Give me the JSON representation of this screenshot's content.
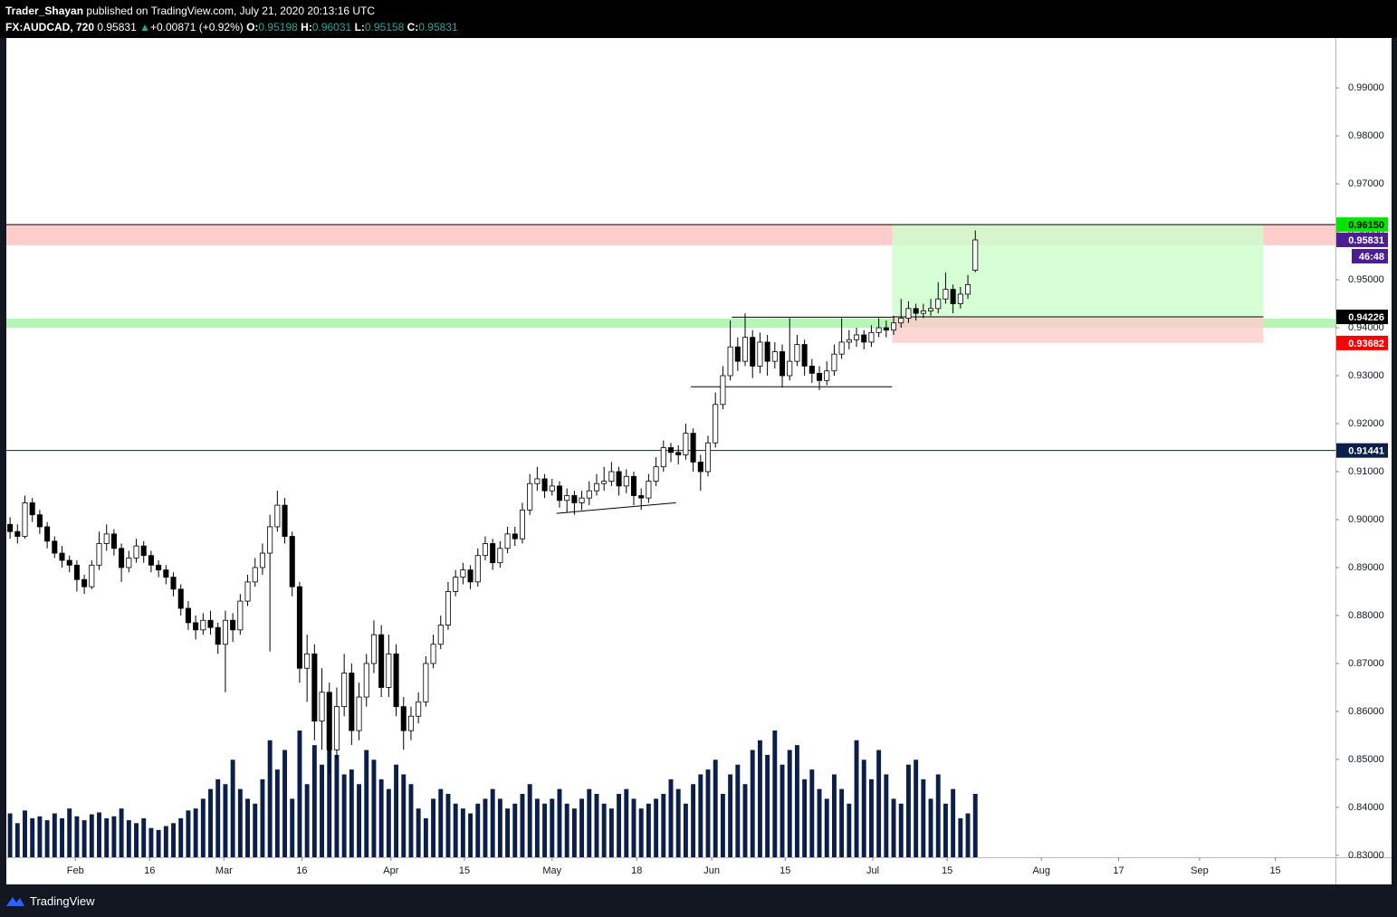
{
  "header": {
    "author": "Trader_Shayan",
    "published": "published on TradingView.com, July 21, 2020 20:13:16 UTC",
    "symbol": "FX:AUDCAD, 720",
    "last": "0.95831",
    "arrow": "▲",
    "change": "+0.00871 (+0.92%)",
    "o_label": "O:",
    "o": "0.95198",
    "h_label": "H:",
    "h": "0.96031",
    "l_label": "L:",
    "l": "0.95158",
    "c_label": "C:",
    "c": "0.95831"
  },
  "footer": {
    "brand": "TradingView"
  },
  "chart_data": {
    "type": "candlestick",
    "xlim": [
      0,
      179
    ],
    "ylim": [
      0.8296,
      1.0004
    ],
    "xticks": [
      {
        "value": 9.3,
        "label": "Feb"
      },
      {
        "value": 19.3,
        "label": "16"
      },
      {
        "value": 29.3,
        "label": "Mar"
      },
      {
        "value": 39.8,
        "label": "16"
      },
      {
        "value": 51.8,
        "label": "Apr"
      },
      {
        "value": 61.7,
        "label": "15"
      },
      {
        "value": 73.5,
        "label": "May"
      },
      {
        "value": 84.9,
        "label": "18"
      },
      {
        "value": 95,
        "label": "Jun"
      },
      {
        "value": 104.9,
        "label": "15"
      },
      {
        "value": 116.7,
        "label": "Jul"
      },
      {
        "value": 126.7,
        "label": "15"
      },
      {
        "value": 139.4,
        "label": "Aug"
      },
      {
        "value": 149.8,
        "label": "17"
      },
      {
        "value": 160.7,
        "label": "Sep"
      },
      {
        "value": 170.9,
        "label": "15"
      }
    ],
    "yticks": [
      {
        "value": 0.83,
        "label": "0.83000"
      },
      {
        "value": 0.84,
        "label": "0.84000"
      },
      {
        "value": 0.85,
        "label": "0.85000"
      },
      {
        "value": 0.86,
        "label": "0.86000"
      },
      {
        "value": 0.87,
        "label": "0.87000"
      },
      {
        "value": 0.88,
        "label": "0.88000"
      },
      {
        "value": 0.89,
        "label": "0.89000"
      },
      {
        "value": 0.9,
        "label": "0.90000"
      },
      {
        "value": 0.91,
        "label": "0.91000"
      },
      {
        "value": 0.92,
        "label": "0.92000"
      },
      {
        "value": 0.93,
        "label": "0.93000"
      },
      {
        "value": 0.94,
        "label": "0.94000"
      },
      {
        "value": 0.95,
        "label": "0.95000"
      },
      {
        "value": 0.96,
        "label": "0.96000"
      },
      {
        "value": 0.97,
        "label": "0.97000"
      },
      {
        "value": 0.98,
        "label": "0.98000"
      },
      {
        "value": 0.99,
        "label": "0.99000"
      }
    ],
    "up_color": "#ffffff",
    "down_color": "#000000",
    "volume_color": "#0c1f4a",
    "candles": [
      [
        0.899,
        0.9005,
        0.896,
        0.8975
      ],
      [
        0.8975,
        0.899,
        0.895,
        0.8965
      ],
      [
        0.8965,
        0.905,
        0.896,
        0.9035
      ],
      [
        0.9035,
        0.9045,
        0.8995,
        0.901
      ],
      [
        0.901,
        0.902,
        0.897,
        0.8985
      ],
      [
        0.8985,
        0.8995,
        0.894,
        0.8955
      ],
      [
        0.8955,
        0.8965,
        0.892,
        0.893
      ],
      [
        0.893,
        0.8945,
        0.89,
        0.8915
      ],
      [
        0.8915,
        0.8925,
        0.889,
        0.8905
      ],
      [
        0.8905,
        0.8915,
        0.885,
        0.8875
      ],
      [
        0.8875,
        0.8885,
        0.8845,
        0.886
      ],
      [
        0.886,
        0.8915,
        0.8855,
        0.8905
      ],
      [
        0.8905,
        0.8975,
        0.8895,
        0.895
      ],
      [
        0.895,
        0.899,
        0.8935,
        0.897
      ],
      [
        0.897,
        0.898,
        0.8925,
        0.894
      ],
      [
        0.894,
        0.895,
        0.887,
        0.89
      ],
      [
        0.89,
        0.8935,
        0.889,
        0.892
      ],
      [
        0.892,
        0.896,
        0.891,
        0.8945
      ],
      [
        0.8945,
        0.8955,
        0.891,
        0.8925
      ],
      [
        0.8925,
        0.8935,
        0.889,
        0.8905
      ],
      [
        0.8905,
        0.8915,
        0.888,
        0.8895
      ],
      [
        0.8895,
        0.8905,
        0.8865,
        0.888
      ],
      [
        0.888,
        0.889,
        0.884,
        0.8855
      ],
      [
        0.8855,
        0.8865,
        0.88,
        0.8815
      ],
      [
        0.8815,
        0.883,
        0.877,
        0.8785
      ],
      [
        0.8785,
        0.88,
        0.875,
        0.877
      ],
      [
        0.877,
        0.8805,
        0.876,
        0.879
      ],
      [
        0.879,
        0.881,
        0.876,
        0.8775
      ],
      [
        0.8775,
        0.8785,
        0.872,
        0.874
      ],
      [
        0.874,
        0.881,
        0.864,
        0.879
      ],
      [
        0.879,
        0.8805,
        0.8745,
        0.877
      ],
      [
        0.877,
        0.8845,
        0.876,
        0.883
      ],
      [
        0.883,
        0.8885,
        0.882,
        0.887
      ],
      [
        0.887,
        0.892,
        0.886,
        0.89
      ],
      [
        0.89,
        0.895,
        0.8885,
        0.893
      ],
      [
        0.893,
        0.901,
        0.8725,
        0.8985
      ],
      [
        0.8985,
        0.906,
        0.8975,
        0.903
      ],
      [
        0.903,
        0.9045,
        0.895,
        0.8965
      ],
      [
        0.8965,
        0.8975,
        0.884,
        0.886
      ],
      [
        0.886,
        0.887,
        0.866,
        0.869
      ],
      [
        0.869,
        0.876,
        0.862,
        0.872
      ],
      [
        0.872,
        0.874,
        0.854,
        0.858
      ],
      [
        0.858,
        0.869,
        0.852,
        0.864
      ],
      [
        0.864,
        0.866,
        0.847,
        0.852
      ],
      [
        0.852,
        0.865,
        0.85,
        0.861
      ],
      [
        0.861,
        0.872,
        0.859,
        0.868
      ],
      [
        0.868,
        0.87,
        0.853,
        0.856
      ],
      [
        0.856,
        0.866,
        0.854,
        0.863
      ],
      [
        0.863,
        0.872,
        0.861,
        0.87
      ],
      [
        0.87,
        0.879,
        0.868,
        0.876
      ],
      [
        0.876,
        0.878,
        0.863,
        0.865
      ],
      [
        0.865,
        0.876,
        0.863,
        0.872
      ],
      [
        0.872,
        0.874,
        0.859,
        0.861
      ],
      [
        0.861,
        0.863,
        0.852,
        0.856
      ],
      [
        0.856,
        0.861,
        0.854,
        0.859
      ],
      [
        0.859,
        0.864,
        0.8575,
        0.862
      ],
      [
        0.862,
        0.8715,
        0.861,
        0.87
      ],
      [
        0.87,
        0.876,
        0.869,
        0.874
      ],
      [
        0.874,
        0.88,
        0.873,
        0.878
      ],
      [
        0.878,
        0.887,
        0.877,
        0.885
      ],
      [
        0.885,
        0.8895,
        0.884,
        0.888
      ],
      [
        0.888,
        0.891,
        0.8865,
        0.8895
      ],
      [
        0.8895,
        0.8905,
        0.8855,
        0.887
      ],
      [
        0.887,
        0.894,
        0.886,
        0.8925
      ],
      [
        0.8925,
        0.8965,
        0.8915,
        0.895
      ],
      [
        0.895,
        0.896,
        0.8895,
        0.891
      ],
      [
        0.891,
        0.8955,
        0.89,
        0.894
      ],
      [
        0.894,
        0.8985,
        0.893,
        0.897
      ],
      [
        0.897,
        0.8985,
        0.8945,
        0.896
      ],
      [
        0.896,
        0.9035,
        0.895,
        0.902
      ],
      [
        0.902,
        0.9095,
        0.901,
        0.9075
      ],
      [
        0.9075,
        0.911,
        0.906,
        0.9085
      ],
      [
        0.9085,
        0.9095,
        0.9045,
        0.906
      ],
      [
        0.906,
        0.9085,
        0.905,
        0.907
      ],
      [
        0.907,
        0.908,
        0.9025,
        0.904
      ],
      [
        0.904,
        0.9065,
        0.9015,
        0.905
      ],
      [
        0.905,
        0.906,
        0.901,
        0.9035
      ],
      [
        0.9035,
        0.906,
        0.902,
        0.9045
      ],
      [
        0.9045,
        0.908,
        0.903,
        0.906
      ],
      [
        0.906,
        0.9095,
        0.905,
        0.9075
      ],
      [
        0.9075,
        0.911,
        0.906,
        0.908
      ],
      [
        0.908,
        0.912,
        0.907,
        0.91
      ],
      [
        0.91,
        0.911,
        0.905,
        0.907
      ],
      [
        0.907,
        0.9105,
        0.9055,
        0.909
      ],
      [
        0.909,
        0.91,
        0.903,
        0.905
      ],
      [
        0.905,
        0.9065,
        0.902,
        0.9045
      ],
      [
        0.9045,
        0.9095,
        0.9035,
        0.908
      ],
      [
        0.908,
        0.913,
        0.907,
        0.911
      ],
      [
        0.911,
        0.9165,
        0.91,
        0.915
      ],
      [
        0.915,
        0.916,
        0.912,
        0.914
      ],
      [
        0.914,
        0.9155,
        0.9115,
        0.9135
      ],
      [
        0.9135,
        0.92,
        0.9125,
        0.918
      ],
      [
        0.918,
        0.919,
        0.91,
        0.912
      ],
      [
        0.912,
        0.9135,
        0.906,
        0.91
      ],
      [
        0.91,
        0.9175,
        0.909,
        0.916
      ],
      [
        0.916,
        0.9265,
        0.915,
        0.924
      ],
      [
        0.924,
        0.932,
        0.923,
        0.93
      ],
      [
        0.93,
        0.9415,
        0.929,
        0.936
      ],
      [
        0.936,
        0.938,
        0.931,
        0.933
      ],
      [
        0.933,
        0.943,
        0.932,
        0.938
      ],
      [
        0.938,
        0.9395,
        0.9295,
        0.932
      ],
      [
        0.932,
        0.939,
        0.9305,
        0.937
      ],
      [
        0.937,
        0.9385,
        0.93,
        0.933
      ],
      [
        0.933,
        0.937,
        0.9315,
        0.935
      ],
      [
        0.935,
        0.9365,
        0.9275,
        0.93
      ],
      [
        0.93,
        0.942,
        0.929,
        0.933
      ],
      [
        0.933,
        0.9385,
        0.932,
        0.9365
      ],
      [
        0.9365,
        0.9375,
        0.93,
        0.932
      ],
      [
        0.932,
        0.9335,
        0.9285,
        0.9305
      ],
      [
        0.9305,
        0.932,
        0.927,
        0.929
      ],
      [
        0.929,
        0.933,
        0.928,
        0.931
      ],
      [
        0.931,
        0.9365,
        0.93,
        0.9345
      ],
      [
        0.9345,
        0.942,
        0.9335,
        0.937
      ],
      [
        0.937,
        0.9395,
        0.9355,
        0.9375
      ],
      [
        0.9375,
        0.94,
        0.936,
        0.9385
      ],
      [
        0.9385,
        0.9395,
        0.9355,
        0.937
      ],
      [
        0.937,
        0.9405,
        0.936,
        0.939
      ],
      [
        0.939,
        0.942,
        0.938,
        0.94
      ],
      [
        0.94,
        0.9415,
        0.938,
        0.9395
      ],
      [
        0.9395,
        0.9425,
        0.9385,
        0.941
      ],
      [
        0.941,
        0.946,
        0.94,
        0.942
      ],
      [
        0.942,
        0.9455,
        0.941,
        0.944
      ],
      [
        0.944,
        0.945,
        0.9415,
        0.943
      ],
      [
        0.943,
        0.945,
        0.942,
        0.9435
      ],
      [
        0.9435,
        0.946,
        0.9425,
        0.944
      ],
      [
        0.944,
        0.9495,
        0.943,
        0.946
      ],
      [
        0.946,
        0.9515,
        0.945,
        0.948
      ],
      [
        0.948,
        0.949,
        0.943,
        0.945
      ],
      [
        0.945,
        0.9485,
        0.944,
        0.947
      ],
      [
        0.947,
        0.951,
        0.946,
        0.949
      ],
      [
        0.95198,
        0.96031,
        0.95158,
        0.95831
      ]
    ],
    "volumes": [
      45,
      35,
      48,
      40,
      42,
      38,
      45,
      40,
      50,
      42,
      38,
      44,
      46,
      40,
      42,
      50,
      38,
      35,
      40,
      30,
      28,
      32,
      35,
      40,
      48,
      50,
      60,
      70,
      80,
      75,
      100,
      70,
      60,
      55,
      80,
      120,
      90,
      110,
      60,
      130,
      75,
      115,
      95,
      120,
      105,
      85,
      90,
      75,
      110,
      100,
      80,
      70,
      95,
      85,
      75,
      50,
      40,
      60,
      70,
      65,
      55,
      50,
      45,
      55,
      60,
      70,
      60,
      50,
      55,
      65,
      75,
      60,
      55,
      60,
      70,
      55,
      50,
      60,
      70,
      65,
      55,
      50,
      65,
      70,
      60,
      50,
      55,
      60,
      65,
      80,
      70,
      55,
      75,
      85,
      90,
      100,
      65,
      85,
      95,
      75,
      110,
      120,
      105,
      130,
      95,
      110,
      115,
      80,
      90,
      70,
      60,
      85,
      70,
      55,
      120,
      100,
      80,
      110,
      85,
      60,
      55,
      95,
      100,
      80,
      60,
      85,
      55,
      70,
      40,
      45,
      65
    ],
    "zones": [
      {
        "from": 0.9572,
        "to": 0.9615,
        "color": "#ffcccc"
      },
      {
        "from": 0.94,
        "to": 0.9419,
        "color": "#b5f5b5"
      }
    ],
    "hlines": [
      {
        "value": 0.9615,
        "color": "#000000"
      },
      {
        "value": 0.91441,
        "color": "#0c1f4a"
      }
    ],
    "trendlines": [
      {
        "x": [
          97.7,
          119.3
        ],
        "y": [
          0.9422,
          0.9422
        ]
      },
      {
        "x": [
          92.2,
          119.3
        ],
        "y": [
          0.9277,
          0.9277
        ]
      },
      {
        "x": [
          74.1,
          90.2
        ],
        "y": [
          0.9013,
          0.9035
        ]
      }
    ],
    "position": {
      "x": [
        119.3,
        169.3
      ],
      "target": 0.9615,
      "entry": 0.94226,
      "stop": 0.93682,
      "profit_color": "#ccffcc",
      "loss_color": "#ffcccc"
    },
    "price_labels": [
      {
        "value": 0.9615,
        "label": "0.96150",
        "bg": "#00e600",
        "fg": "#000000"
      },
      {
        "value": 0.95831,
        "label": "0.95831",
        "bg": "#4b1f91",
        "fg": "#ffffff"
      },
      {
        "value": 0.94226,
        "label": "0.94226",
        "bg": "#000000",
        "fg": "#ffffff"
      },
      {
        "value": 0.93682,
        "label": "0.93682",
        "bg": "#ff0000",
        "fg": "#ffffff"
      },
      {
        "value": 0.91441,
        "label": "0.91441",
        "bg": "#0c1f4a",
        "fg": "#ffffff"
      }
    ],
    "countdown": "46:48",
    "countdown_bg": "#4b1f91"
  }
}
